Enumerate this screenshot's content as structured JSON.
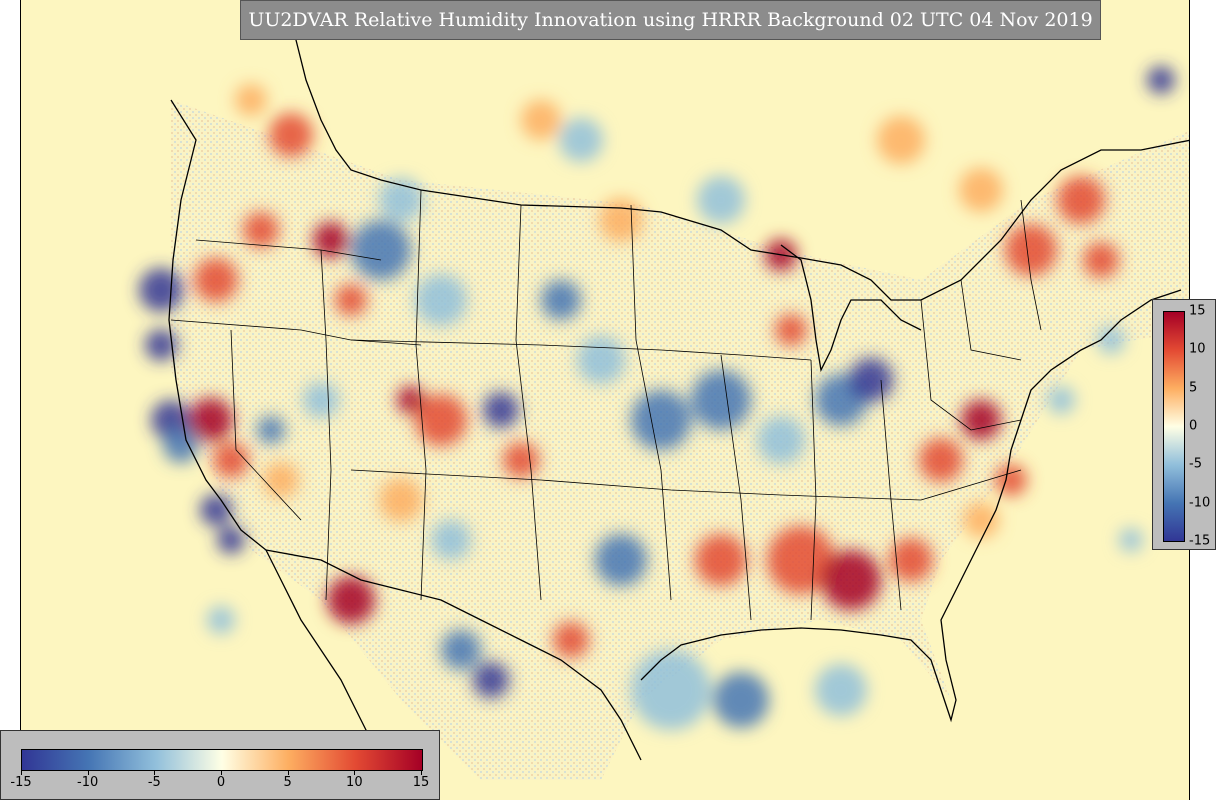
{
  "title": "UU2DVAR Relative Humidity Innovation using HRRR Background 02 UTC 04 Nov 2019",
  "colorbar": {
    "min": -15,
    "max": 15,
    "horizontal_ticks": [
      "-15",
      "-10",
      "-5",
      "0",
      "5",
      "10",
      "15"
    ],
    "vertical_ticks": [
      "15",
      "10",
      "5",
      "0",
      "-5",
      "-10",
      "-15"
    ],
    "colors": {
      "neg_15": "#313695",
      "neg_10": "#4575b4",
      "neg_5": "#91bfdb",
      "zero": "#ffffe5",
      "pos_5": "#fdae61",
      "pos_10": "#e34a33",
      "pos_15": "#a50026"
    }
  },
  "map": {
    "background_color": "#fdf6c0",
    "coastline_color": "#000000",
    "projection": "lambert-conformal"
  }
}
